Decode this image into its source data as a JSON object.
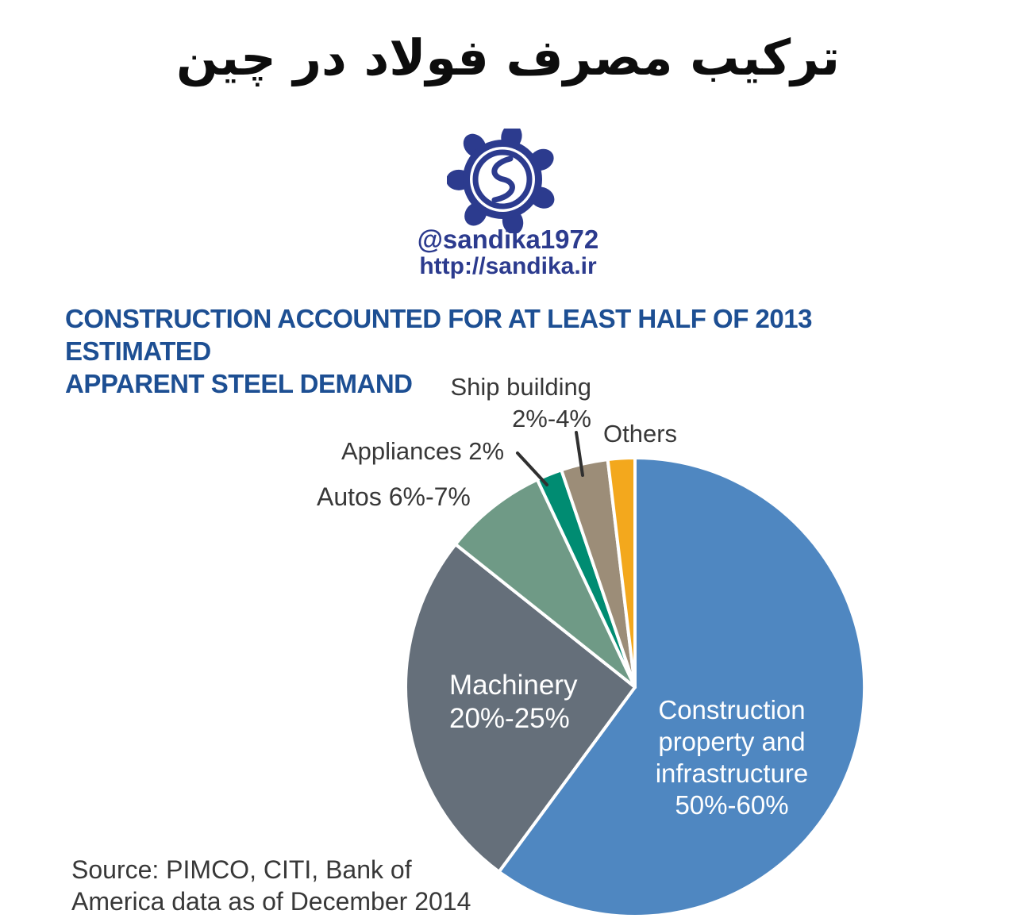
{
  "header": {
    "title_fa": "ترکیب مصرف فولاد در چین",
    "handle": "@sandika1972",
    "website": "http://sandika.ir",
    "brand_color": "#2c3b8e",
    "logo_icon": "sandika-gear-emblem"
  },
  "headline": {
    "lines": [
      "CONSTRUCTION ACCOUNTED FOR AT LEAST HALF OF 2013 ESTIMATED",
      "APPARENT STEEL DEMAND"
    ],
    "color": "#1d4f93"
  },
  "source": {
    "lines": [
      "Source: PIMCO, CITI, Bank of",
      "America data as of December 2014"
    ]
  },
  "chart_data": {
    "type": "pie",
    "title": "CONSTRUCTION ACCOUNTED FOR AT LEAST HALF OF 2013 ESTIMATED APPARENT STEEL DEMAND",
    "source": "Source: PIMCO, CITI, Bank of America data as of December 2014",
    "start_angle_deg": 0,
    "direction": "clockwise",
    "gap_color": "#ffffff",
    "segments": [
      {
        "id": "construction-property-infrastructure",
        "name": "Construction property and infrastructure",
        "share_range": "50%-60%",
        "share_pct_range": [
          50,
          60
        ],
        "display_fraction_pct": 60.1,
        "color": "#4f87c1",
        "label_placement": "inside",
        "label_lines": [
          "Construction",
          "property and",
          "infrastructure",
          "50%-60%"
        ]
      },
      {
        "id": "machinery",
        "name": "Machinery",
        "share_range": "20%-25%",
        "share_pct_range": [
          20,
          25
        ],
        "display_fraction_pct": 25.6,
        "color": "#656f7a",
        "label_placement": "inside",
        "label_lines": [
          "Machinery",
          "20%-25%"
        ]
      },
      {
        "id": "autos",
        "name": "Autos",
        "share_range": "6%-7%",
        "share_pct_range": [
          6,
          7
        ],
        "display_fraction_pct": 7.3,
        "color": "#6f9a86",
        "label_placement": "outside",
        "label_text": "Autos 6%-7%"
      },
      {
        "id": "appliances",
        "name": "Appliances",
        "share_range": "2%",
        "share_pct_range": [
          2,
          2
        ],
        "display_fraction_pct": 1.8,
        "color": "#008c72",
        "label_placement": "outside",
        "label_text": "Appliances 2%",
        "has_leader_line": true
      },
      {
        "id": "ship-building",
        "name": "Ship building",
        "share_range": "2%-4%",
        "share_pct_range": [
          2,
          4
        ],
        "display_fraction_pct": 3.3,
        "color": "#9c8d78",
        "label_placement": "outside",
        "label_lines": [
          "Ship building",
          "2%-4%"
        ],
        "has_leader_line": true
      },
      {
        "id": "others",
        "name": "Others",
        "share_range": "",
        "share_pct_range": null,
        "display_fraction_pct": 1.9,
        "color": "#f3a81d",
        "label_placement": "outside",
        "label_text": "Others"
      }
    ]
  }
}
